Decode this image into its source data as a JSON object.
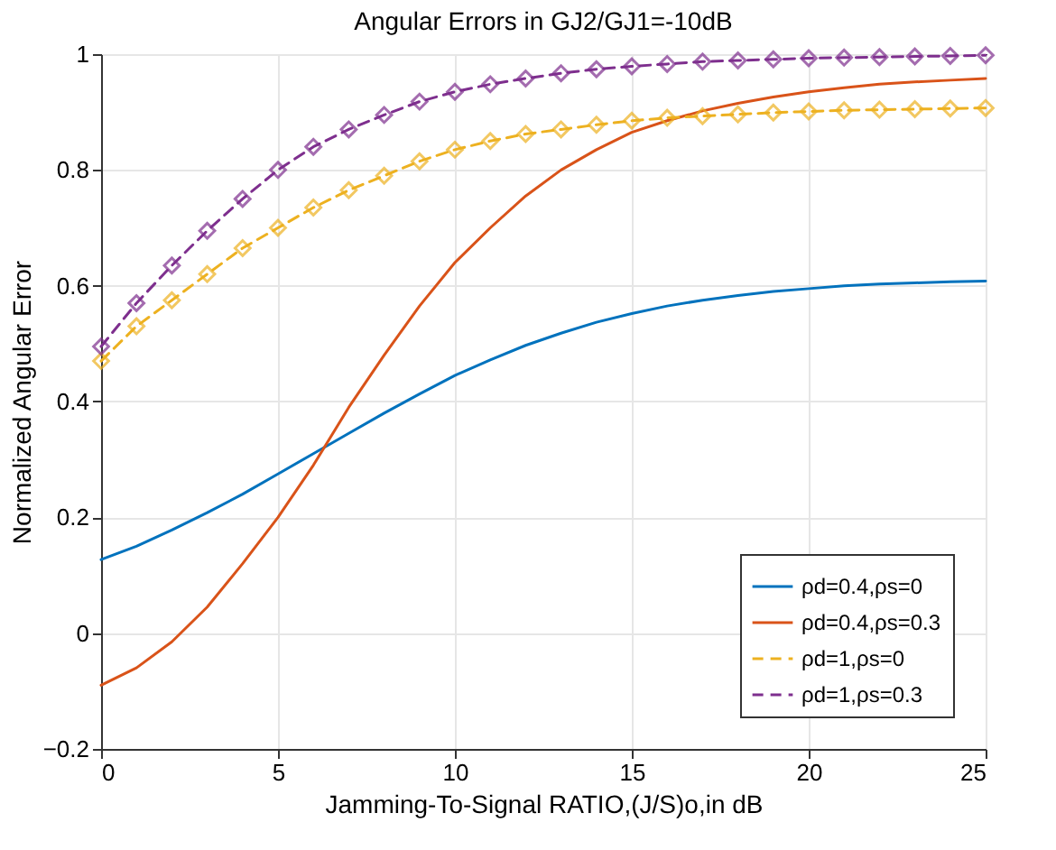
{
  "chart_data": {
    "type": "line",
    "title": "Angular Errors in GJ2/GJ1=-10dB",
    "xlabel": "Jamming-To-Signal RATIO,(J/S)o,in dB",
    "ylabel": "Normalized Angular Error",
    "x": [
      0,
      1,
      2,
      3,
      4,
      5,
      6,
      7,
      8,
      9,
      10,
      11,
      12,
      13,
      14,
      15,
      16,
      17,
      18,
      19,
      20,
      21,
      22,
      23,
      24,
      25
    ],
    "series": [
      {
        "name": "ρd=0.4,ρs=0",
        "color": "#0072bd",
        "marker": "none",
        "line_style": "solid",
        "values": [
          0.127,
          0.15,
          0.178,
          0.208,
          0.24,
          0.275,
          0.31,
          0.345,
          0.38,
          0.413,
          0.445,
          0.472,
          0.497,
          0.518,
          0.537,
          0.552,
          0.565,
          0.575,
          0.583,
          0.59,
          0.595,
          0.6,
          0.603,
          0.605,
          0.607,
          0.608
        ]
      },
      {
        "name": "ρd=0.4,ρs=0.3",
        "color": "#d95319",
        "marker": "none",
        "line_style": "solid",
        "values": [
          -0.09,
          -0.06,
          -0.015,
          0.045,
          0.12,
          0.2,
          0.29,
          0.39,
          0.48,
          0.565,
          0.64,
          0.7,
          0.755,
          0.8,
          0.835,
          0.865,
          0.885,
          0.902,
          0.915,
          0.926,
          0.935,
          0.942,
          0.948,
          0.952,
          0.955,
          0.958
        ]
      },
      {
        "name": "ρd=1,ρs=0",
        "color": "#edb120",
        "marker": "diamond",
        "line_style": "dashed",
        "values": [
          0.47,
          0.53,
          0.575,
          0.62,
          0.665,
          0.7,
          0.735,
          0.765,
          0.79,
          0.815,
          0.835,
          0.85,
          0.862,
          0.87,
          0.878,
          0.885,
          0.89,
          0.893,
          0.896,
          0.899,
          0.901,
          0.903,
          0.904,
          0.905,
          0.906,
          0.907
        ]
      },
      {
        "name": "ρd=1,ρs=0.3",
        "color": "#7e2f8e",
        "marker": "diamond",
        "line_style": "dashed",
        "values": [
          0.495,
          0.57,
          0.635,
          0.695,
          0.75,
          0.8,
          0.84,
          0.87,
          0.895,
          0.918,
          0.935,
          0.948,
          0.958,
          0.967,
          0.974,
          0.979,
          0.983,
          0.987,
          0.989,
          0.991,
          0.993,
          0.994,
          0.995,
          0.996,
          0.997,
          0.998
        ]
      }
    ],
    "xlim": [
      0,
      25
    ],
    "xticks": [
      0,
      5,
      10,
      15,
      20,
      25
    ],
    "ylim": [
      -0.2,
      1
    ],
    "yticks": [
      -0.2,
      0,
      0.2,
      0.4,
      0.6,
      0.8,
      1
    ],
    "grid": true,
    "legend": "bottom right"
  }
}
